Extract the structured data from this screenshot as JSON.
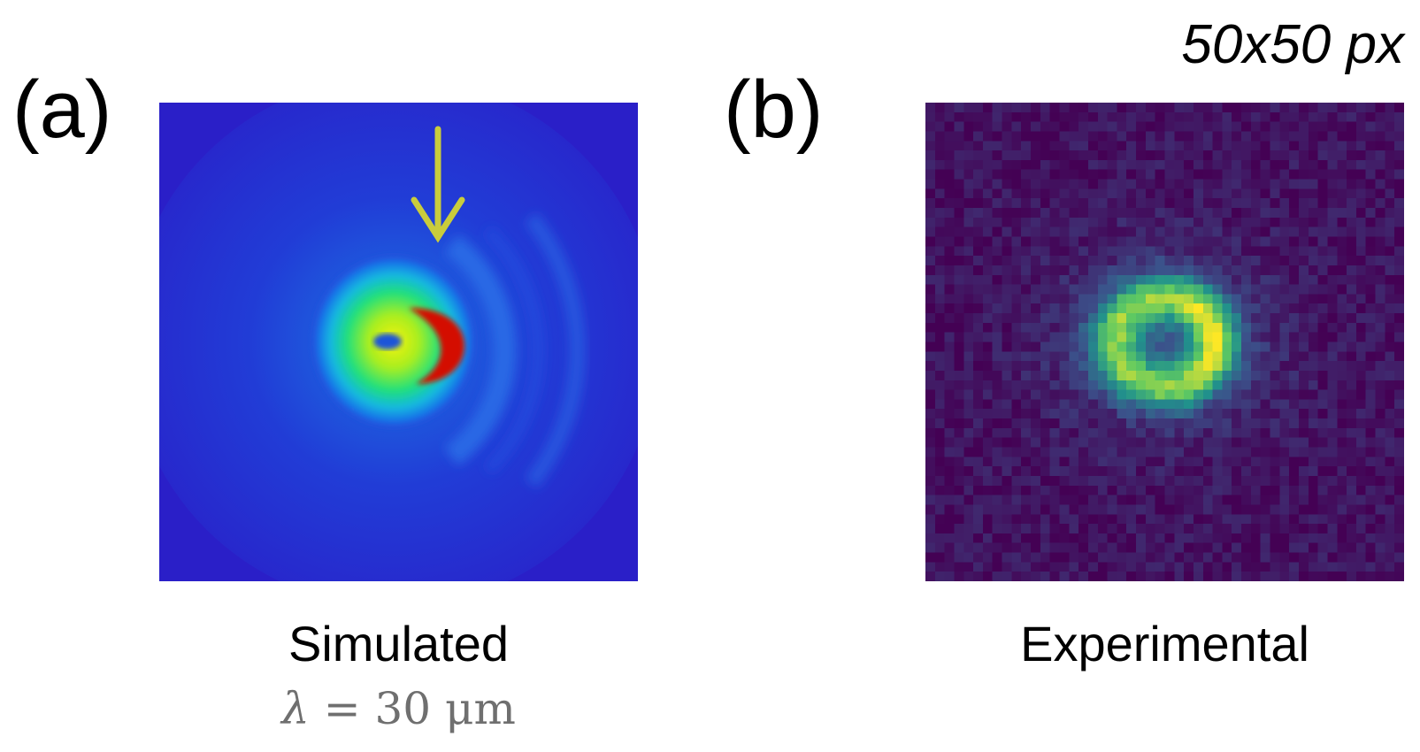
{
  "panel_a": {
    "label": "(a)",
    "caption": "Simulated",
    "parameter_symbol": "λ",
    "parameter_value": "= 30 μm",
    "arrow_color": "#c9cc3c",
    "colormap": "jet"
  },
  "panel_b": {
    "label": "(b)",
    "caption": "Experimental",
    "resolution": "50x50 px",
    "colormap": "viridis"
  }
}
